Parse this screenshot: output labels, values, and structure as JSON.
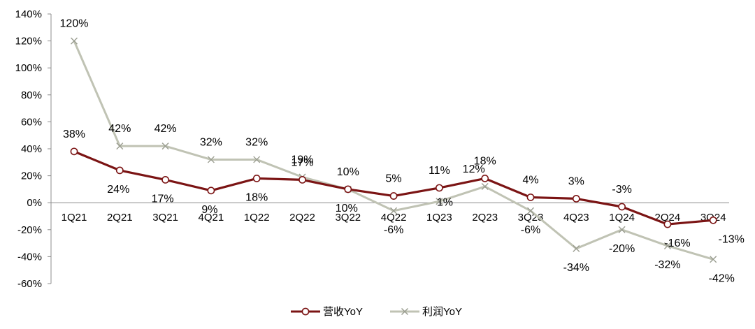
{
  "chart_data": {
    "type": "line",
    "categories": [
      "1Q21",
      "2Q21",
      "3Q21",
      "4Q21",
      "1Q22",
      "2Q22",
      "3Q22",
      "4Q22",
      "1Q23",
      "2Q23",
      "3Q23",
      "4Q23",
      "1Q24",
      "2Q24",
      "3Q24"
    ],
    "series": [
      {
        "name": "营收YoY",
        "color": "#7b1414",
        "marker": "circle",
        "values": [
          38,
          24,
          17,
          9,
          18,
          17,
          10,
          5,
          11,
          18,
          4,
          3,
          -3,
          -16,
          -13
        ],
        "labels": [
          "38%",
          "24%",
          "17%",
          "9%",
          "18%",
          "17%",
          "10%",
          "5%",
          "11%",
          "18%",
          "4%",
          "3%",
          "-3%",
          "-16%",
          "-13%"
        ]
      },
      {
        "name": "利润YoY",
        "color": "#c0c3b4",
        "marker": "x",
        "values": [
          120,
          42,
          42,
          32,
          32,
          19,
          10,
          -6,
          1,
          12,
          -6,
          -34,
          -20,
          -32,
          -42
        ],
        "labels": [
          "120%",
          "42%",
          "42%",
          "32%",
          "32%",
          "19%",
          "10%",
          "-6%",
          "1%",
          "12%",
          "-6%",
          "-34%",
          "-20%",
          "-32%",
          "-42%"
        ]
      }
    ],
    "y_ticks": [
      "140%",
      "120%",
      "100%",
      "80%",
      "60%",
      "40%",
      "20%",
      "0%",
      "-20%",
      "-40%",
      "-60%"
    ],
    "ylim": [
      -60,
      140
    ],
    "y_unit": "%",
    "grid": false,
    "legend_position": "bottom"
  }
}
